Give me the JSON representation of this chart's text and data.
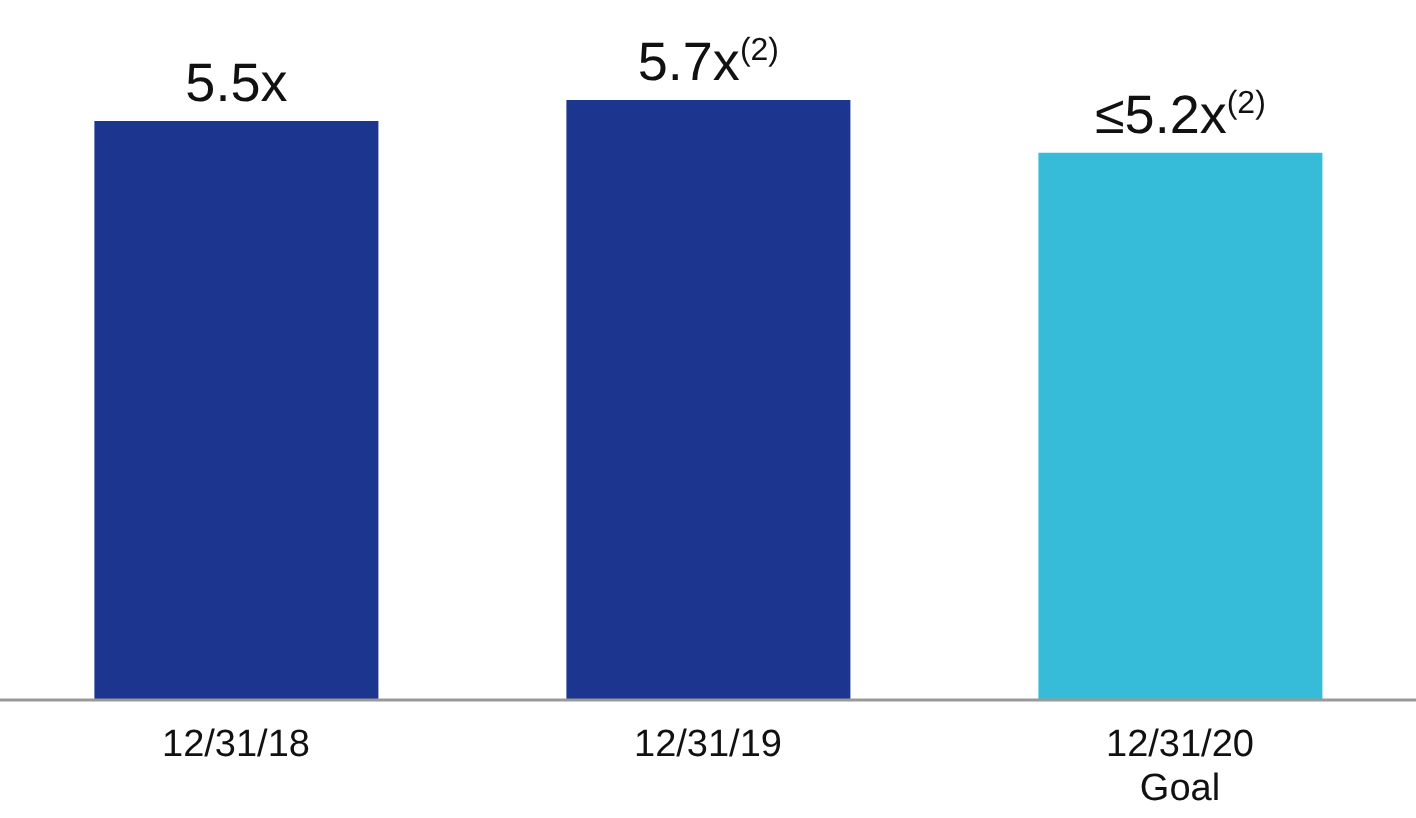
{
  "chart_data": {
    "type": "bar",
    "categories": [
      "12/31/18",
      "12/31/19",
      "12/31/20\nGoal"
    ],
    "values": [
      5.5,
      5.7,
      5.2
    ],
    "colors": [
      "#1c3690",
      "#1c3690",
      "#36bcd9"
    ],
    "value_labels": [
      "5.5x",
      "5.7x$^{(2)}$",
      "≤5.2x$^{(2)}$"
    ],
    "tick_labels": "x",
    "grid": false,
    "legend": false
  }
}
